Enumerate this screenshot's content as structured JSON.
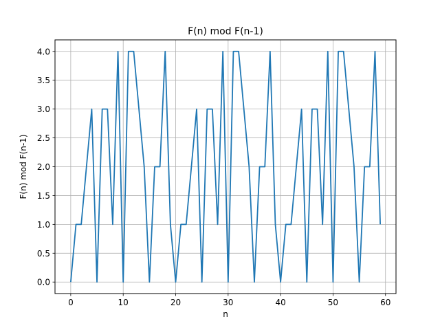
{
  "chart_data": {
    "type": "line",
    "title": "F(n) mod F(n-1)",
    "xlabel": "n",
    "ylabel": "F(n) mod F(n-1)",
    "xlim": [
      -3,
      62
    ],
    "ylim": [
      -0.2,
      4.2
    ],
    "xticks": [
      0,
      10,
      20,
      30,
      40,
      50,
      60
    ],
    "yticks": [
      0.0,
      0.5,
      1.0,
      1.5,
      2.0,
      2.5,
      3.0,
      3.5,
      4.0
    ],
    "ytick_labels": [
      "0.0",
      "0.5",
      "1.0",
      "1.5",
      "2.0",
      "2.5",
      "3.0",
      "3.5",
      "4.0"
    ],
    "grid": true,
    "line_color": "#1f77b4",
    "x": [
      0,
      1,
      2,
      3,
      4,
      5,
      6,
      7,
      8,
      9,
      10,
      11,
      12,
      13,
      14,
      15,
      16,
      17,
      18,
      19,
      20,
      21,
      22,
      23,
      24,
      25,
      26,
      27,
      28,
      29,
      30,
      31,
      32,
      33,
      34,
      35,
      36,
      37,
      38,
      39,
      40,
      41,
      42,
      43,
      44,
      45,
      46,
      47,
      48,
      49,
      50,
      51,
      52,
      53,
      54,
      55,
      56,
      57,
      58,
      59
    ],
    "values": [
      0,
      1,
      1,
      2,
      3,
      0,
      3,
      3,
      1,
      4,
      0,
      4,
      4,
      3,
      2,
      0,
      2,
      2,
      4,
      1,
      0,
      1,
      1,
      2,
      3,
      0,
      3,
      3,
      1,
      4,
      0,
      4,
      4,
      3,
      2,
      0,
      2,
      2,
      4,
      1,
      0,
      1,
      1,
      2,
      3,
      0,
      3,
      3,
      1,
      4,
      0,
      4,
      4,
      3,
      2,
      0,
      2,
      2,
      4,
      1
    ]
  }
}
